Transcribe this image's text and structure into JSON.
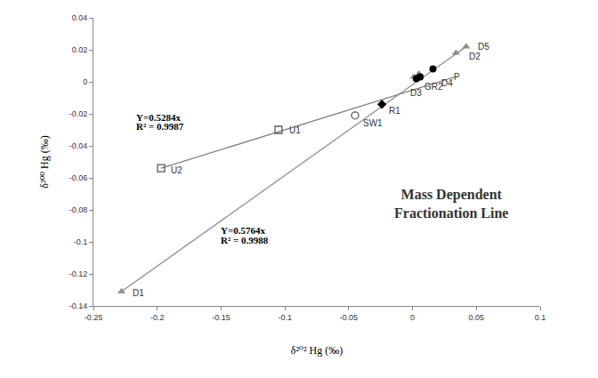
{
  "chart_data": {
    "type": "scatter",
    "x_label": "δ²⁰² Hg (‰)",
    "y_label": "δ²⁰⁰ Hg (‰)",
    "xlim": [
      -0.25,
      0.1
    ],
    "xticks": [
      -0.25,
      -0.2,
      -0.15,
      -0.1,
      -0.05,
      0,
      0.05,
      0.1
    ],
    "ylim": [
      -0.14,
      0.04
    ],
    "yticks": [
      -0.14,
      -0.12,
      -0.1,
      -0.08,
      -0.06,
      -0.04,
      -0.02,
      0,
      0.02,
      0.04
    ],
    "grid": false,
    "series": [
      {
        "type": "line",
        "line_style": "solid",
        "color": "#8c8c8c",
        "x": [
          -0.228,
          0.042
        ],
        "y": [
          -0.131,
          0.022
        ]
      },
      {
        "type": "line",
        "line_style": "solid",
        "color": "#7f7f7f",
        "x": [
          -0.197,
          0.033
        ],
        "y": [
          -0.054,
          0.003
        ]
      },
      {
        "type": "scatter",
        "marker": "triangle-up",
        "color": "#8c8c8c",
        "x": [
          -0.228,
          0.001,
          0.005,
          0.034,
          0.042
        ],
        "y": [
          -0.131,
          0.003,
          0.005,
          0.018,
          0.022
        ]
      },
      {
        "type": "scatter",
        "marker": "square-open",
        "color": "#595959",
        "x": [
          -0.197,
          -0.105
        ],
        "y": [
          -0.054,
          -0.03
        ]
      },
      {
        "type": "scatter",
        "marker": "circle-open",
        "color": "#595959",
        "x": [
          -0.045
        ],
        "y": [
          -0.021
        ]
      },
      {
        "type": "scatter",
        "marker": "diamond",
        "color": "#000000",
        "x": [
          -0.024
        ],
        "y": [
          -0.014
        ]
      },
      {
        "type": "scatter",
        "marker": "circle",
        "color": "#000000",
        "x": [
          0.003,
          0.006,
          0.016
        ],
        "y": [
          0.002,
          0.003,
          0.008
        ]
      }
    ],
    "point_labels": [
      {
        "text": "D1",
        "x": -0.221,
        "y": -0.132
      },
      {
        "text": "U2",
        "x": -0.191,
        "y": -0.055
      },
      {
        "text": "U1",
        "x": -0.098,
        "y": -0.03
      },
      {
        "text": "SW1",
        "x": -0.04,
        "y": -0.026
      },
      {
        "text": "R1",
        "x": -0.02,
        "y": -0.018
      },
      {
        "text": "D3",
        "x": -0.003,
        "y": -0.007
      },
      {
        "text": "GR2",
        "x": 0.008,
        "y": -0.003
      },
      {
        "text": "D4",
        "x": 0.021,
        "y": -0.001
      },
      {
        "text": "P",
        "x": 0.031,
        "y": 0.003
      },
      {
        "text": "D2",
        "x": 0.043,
        "y": 0.016
      },
      {
        "text": "D5",
        "x": 0.05,
        "y": 0.022
      }
    ],
    "fit_labels": [
      {
        "text": "Y=0.5284x",
        "x": -0.218,
        "y": -0.022
      },
      {
        "text": "R² = 0.9987",
        "x": -0.218,
        "y": -0.028
      },
      {
        "text": "Y=0.5764x",
        "x": -0.152,
        "y": -0.093
      },
      {
        "text": "R² = 0.9988",
        "x": -0.152,
        "y": -0.099
      }
    ],
    "annotations": [
      {
        "text": "Mass Dependent\nFractionation Line",
        "x": 0.03,
        "y": -0.076
      }
    ]
  }
}
